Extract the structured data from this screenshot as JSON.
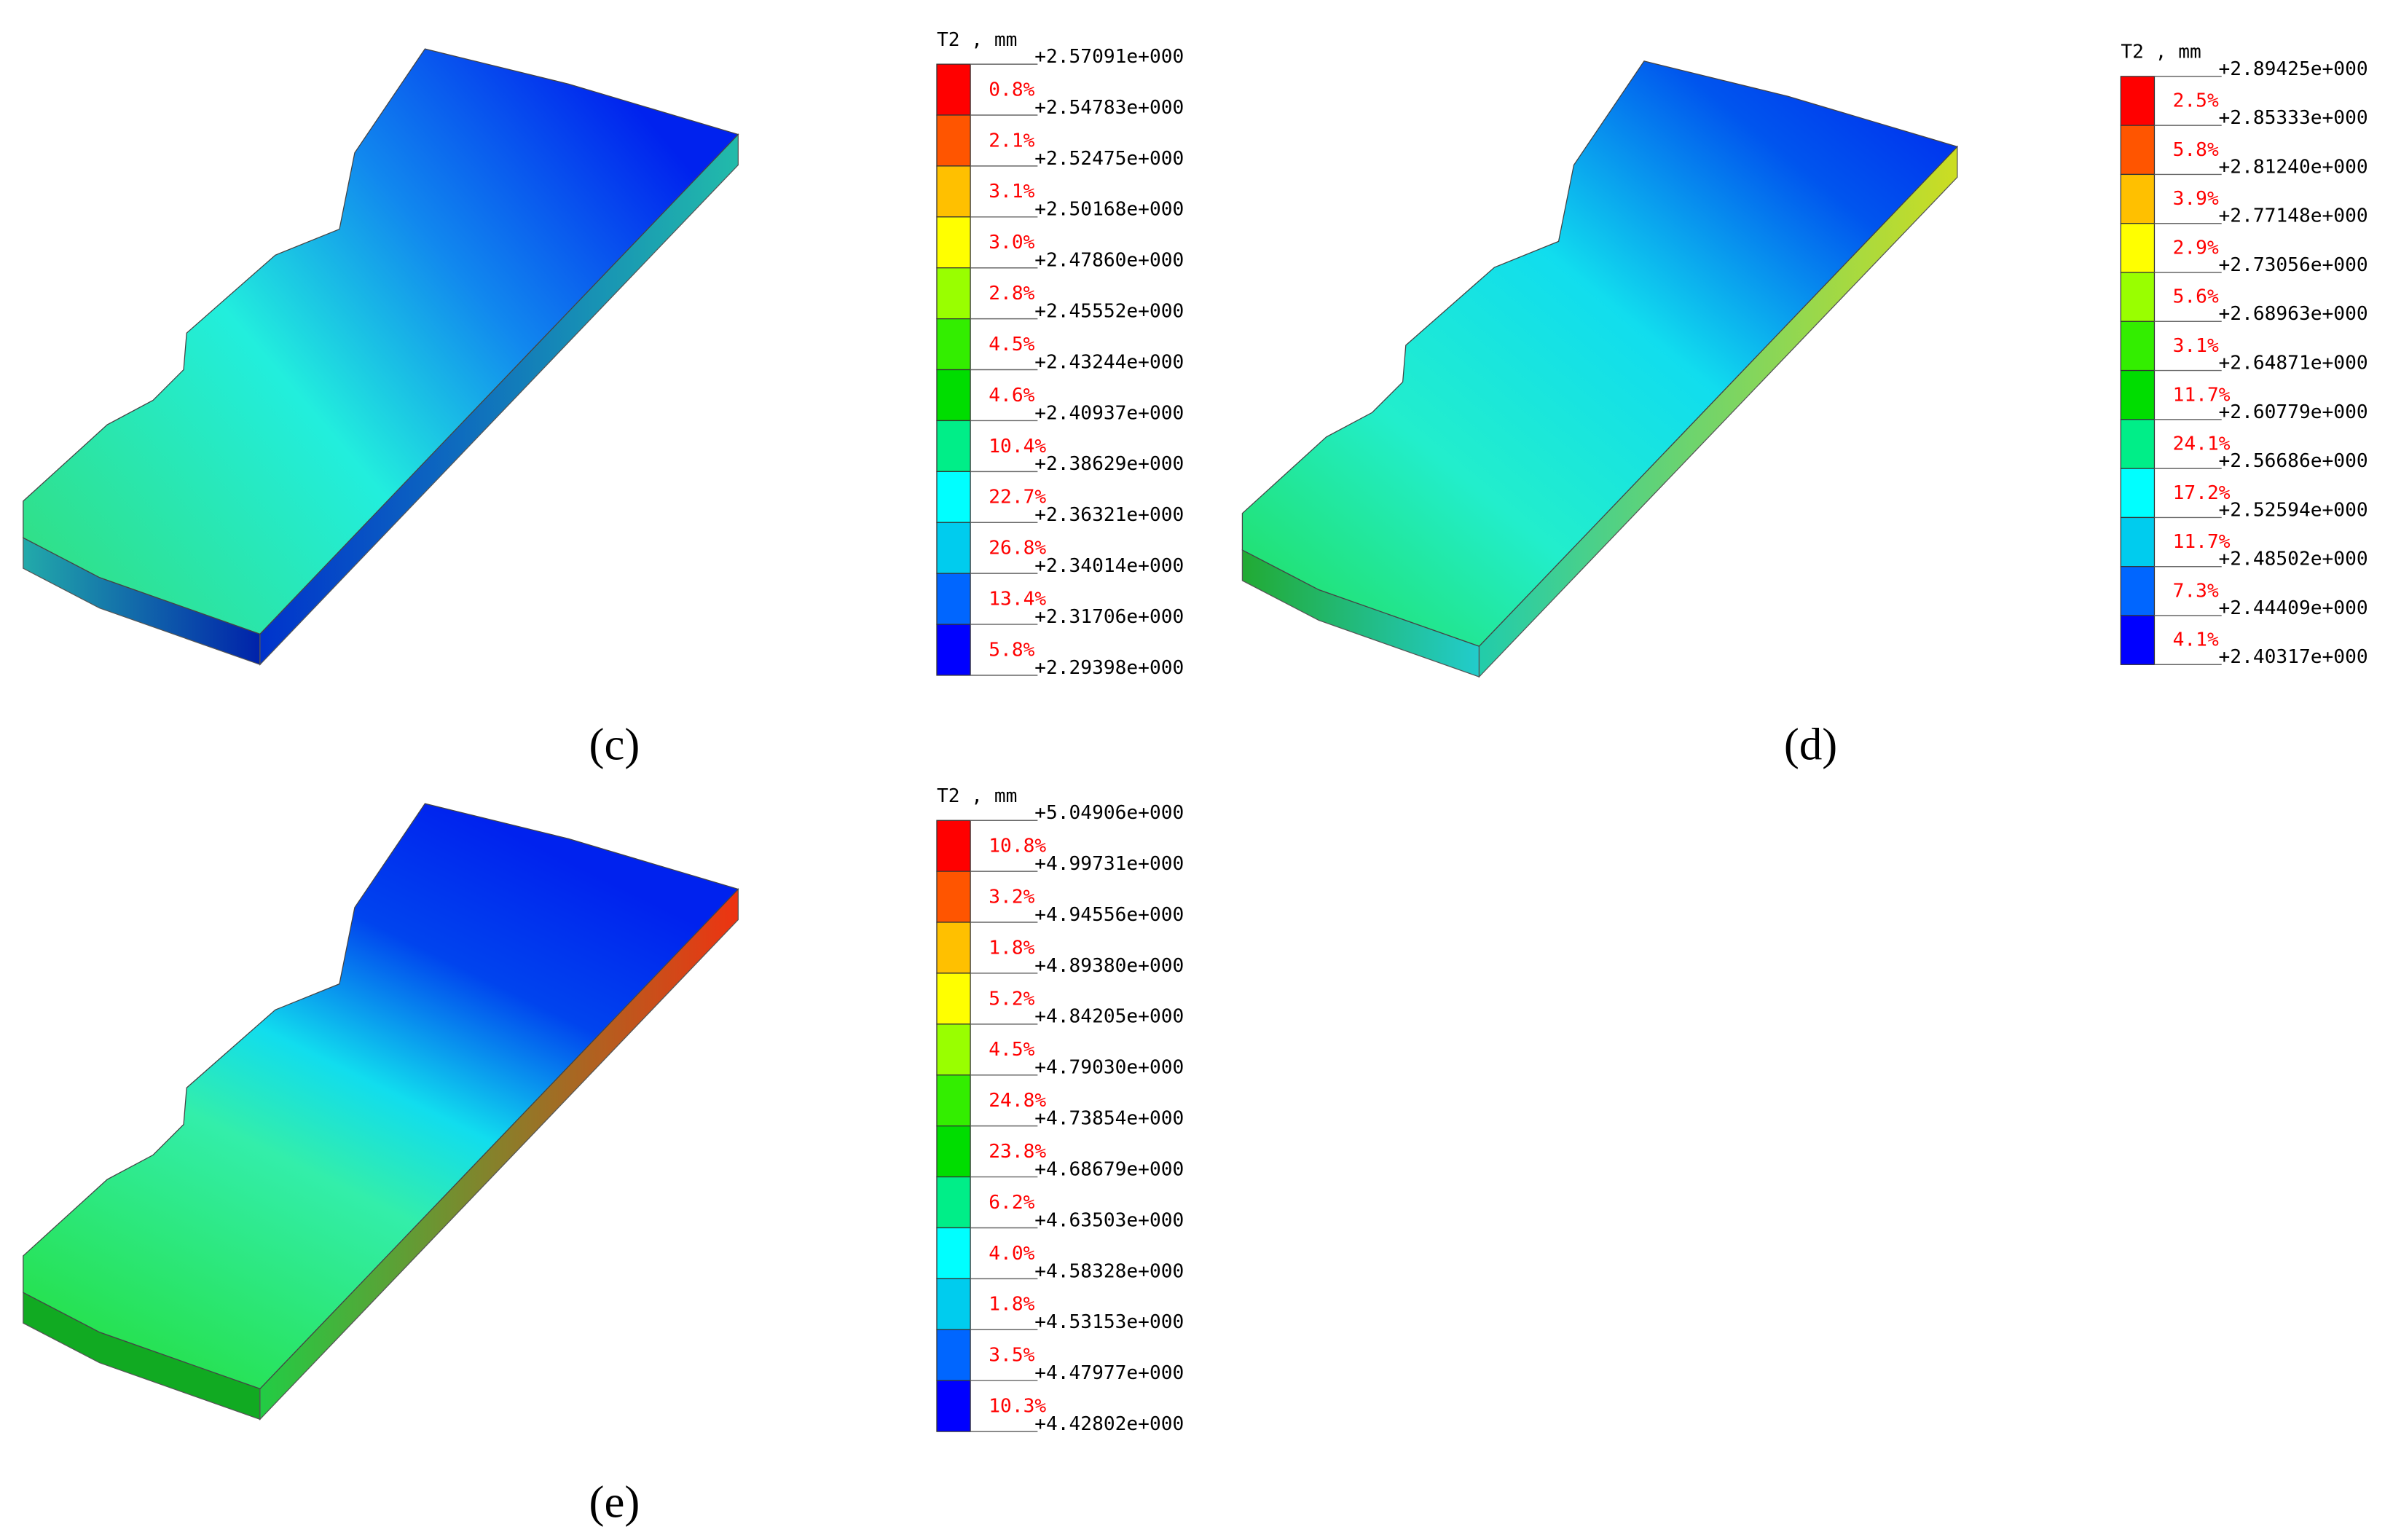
{
  "panels": [
    {
      "label": "(c)",
      "legend": {
        "title": "T2 , mm",
        "levels": [
          "+2.57091e+000",
          "+2.54783e+000",
          "+2.52475e+000",
          "+2.50168e+000",
          "+2.47860e+000",
          "+2.45552e+000",
          "+2.43244e+000",
          "+2.40937e+000",
          "+2.38629e+000",
          "+2.36321e+000",
          "+2.34014e+000",
          "+2.31706e+000",
          "+2.29398e+000"
        ],
        "percentages": [
          "0.8%",
          "2.1%",
          "3.1%",
          "3.0%",
          "2.8%",
          "4.5%",
          "4.6%",
          "10.4%",
          "22.7%",
          "26.8%",
          "13.4%",
          "5.8%"
        ]
      }
    },
    {
      "label": "(d)",
      "legend": {
        "title": "T2 , mm",
        "levels": [
          "+2.89425e+000",
          "+2.85333e+000",
          "+2.81240e+000",
          "+2.77148e+000",
          "+2.73056e+000",
          "+2.68963e+000",
          "+2.64871e+000",
          "+2.60779e+000",
          "+2.56686e+000",
          "+2.52594e+000",
          "+2.48502e+000",
          "+2.44409e+000",
          "+2.40317e+000"
        ],
        "percentages": [
          "2.5%",
          "5.8%",
          "3.9%",
          "2.9%",
          "5.6%",
          "3.1%",
          "11.7%",
          "24.1%",
          "17.2%",
          "11.7%",
          "7.3%",
          "4.1%"
        ]
      }
    },
    {
      "label": "(e)",
      "legend": {
        "title": "T2 , mm",
        "levels": [
          "+5.04906e+000",
          "+4.99731e+000",
          "+4.94556e+000",
          "+4.89380e+000",
          "+4.84205e+000",
          "+4.79030e+000",
          "+4.73854e+000",
          "+4.68679e+000",
          "+4.63503e+000",
          "+4.58328e+000",
          "+4.53153e+000",
          "+4.47977e+000",
          "+4.42802e+000"
        ],
        "percentages": [
          "10.8%",
          "3.2%",
          "1.8%",
          "5.2%",
          "4.5%",
          "24.8%",
          "23.8%",
          "6.2%",
          "4.0%",
          "1.8%",
          "3.5%",
          "10.3%"
        ]
      }
    }
  ]
}
